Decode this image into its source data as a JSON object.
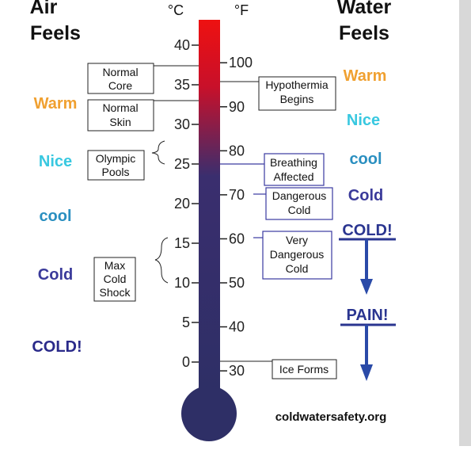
{
  "air_header": [
    "Air",
    "Feels"
  ],
  "water_header": [
    "Water",
    "Feels"
  ],
  "celsius_unit": "°C",
  "fahrenheit_unit": "°F",
  "celsius_ticks": [
    40,
    35,
    30,
    25,
    20,
    15,
    10,
    5,
    0
  ],
  "fahrenheit_ticks": [
    100,
    90,
    80,
    70,
    60,
    50,
    40,
    30
  ],
  "air_feels": [
    "Warm",
    "Nice",
    "cool",
    "Cold",
    "COLD!"
  ],
  "water_feels": [
    "Warm",
    "Nice",
    "cool",
    "Cold",
    "COLD!",
    "PAIN!"
  ],
  "left_notes": [
    [
      "Normal",
      "Core"
    ],
    [
      "Normal",
      "Skin"
    ],
    [
      "Olympic",
      "Pools"
    ],
    [
      "Max",
      "Cold",
      "Shock"
    ]
  ],
  "right_notes": [
    [
      "Hypothermia",
      "Begins"
    ],
    [
      "Breathing",
      "Affected"
    ],
    [
      "Dangerous",
      "Cold"
    ],
    [
      "Very",
      "Dangerous",
      "Cold"
    ],
    [
      "Ice Forms"
    ]
  ],
  "source": "coldwatersafety.org"
}
